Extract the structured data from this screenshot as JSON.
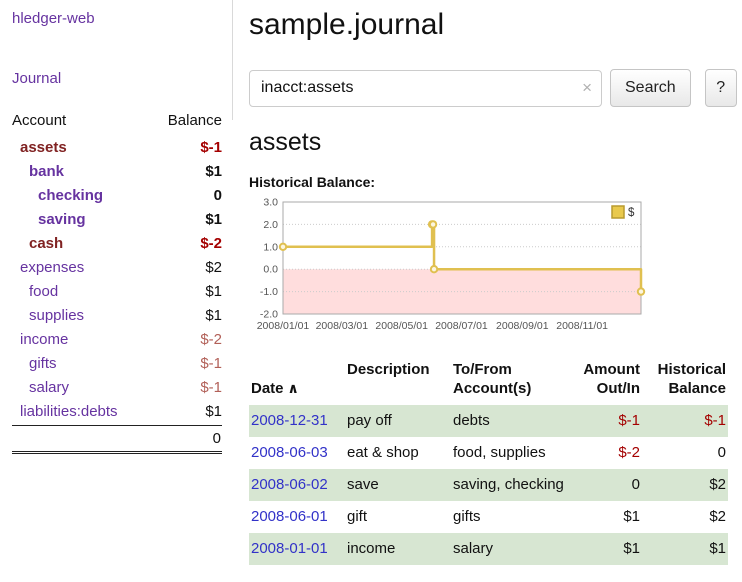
{
  "colors": {
    "link_purple": "#6633a0",
    "date_blue": "#3232c8",
    "negative_strong": "#a40000",
    "negative_soft": "#b26058",
    "account_maroon": "#802222",
    "text_black": "#111111",
    "row_green": "#d7e6d2",
    "chart_line_gold": "#e0c050",
    "chart_negative_fill": "#ffdddd",
    "legend_square_fill": "#e9c94c",
    "legend_square_border": "#b89a2e"
  },
  "window": {
    "app_title": "hledger-web",
    "nav": {
      "journal_label": "Journal"
    }
  },
  "sidebar": {
    "table_headers": {
      "account": "Account",
      "balance": "Balance"
    },
    "rows": [
      {
        "account": "assets",
        "balance": "$-1",
        "indent": 0,
        "bold": true,
        "account_color": "maroon",
        "balance_color": "negative_strong"
      },
      {
        "account": "bank",
        "balance": "$1",
        "indent": 1,
        "bold": true,
        "account_color": "purple",
        "balance_color": "black"
      },
      {
        "account": "checking",
        "balance": "0",
        "indent": 2,
        "bold": true,
        "account_color": "purple",
        "balance_color": "black"
      },
      {
        "account": "saving",
        "balance": "$1",
        "indent": 2,
        "bold": true,
        "account_color": "purple",
        "balance_color": "black"
      },
      {
        "account": "cash",
        "balance": "$-2",
        "indent": 1,
        "bold": true,
        "account_color": "maroon",
        "balance_color": "negative_strong"
      },
      {
        "account": "expenses",
        "balance": "$2",
        "indent": 0,
        "bold": false,
        "account_color": "purple",
        "balance_color": "black"
      },
      {
        "account": "food",
        "balance": "$1",
        "indent": 1,
        "bold": false,
        "account_color": "purple",
        "balance_color": "black"
      },
      {
        "account": "supplies",
        "balance": "$1",
        "indent": 1,
        "bold": false,
        "account_color": "purple",
        "balance_color": "black"
      },
      {
        "account": "income",
        "balance": "$-2",
        "indent": 0,
        "bold": false,
        "account_color": "purple",
        "balance_color": "negative_soft"
      },
      {
        "account": "gifts",
        "balance": "$-1",
        "indent": 1,
        "bold": false,
        "account_color": "purple",
        "balance_color": "negative_soft"
      },
      {
        "account": "salary",
        "balance": "$-1",
        "indent": 1,
        "bold": false,
        "account_color": "purple",
        "balance_color": "negative_soft"
      },
      {
        "account": "liabilities:debts",
        "balance": "$1",
        "indent": 0,
        "bold": false,
        "account_color": "purple",
        "balance_color": "black"
      }
    ],
    "total": "0"
  },
  "main": {
    "title": "sample.journal",
    "search": {
      "value": "inacct:assets",
      "clear_icon": "×",
      "button_label": "Search",
      "help_label": "?"
    },
    "account_heading": "assets",
    "chart_title": "Historical Balance:"
  },
  "chart_data": {
    "type": "line",
    "step": true,
    "title": "Historical Balance",
    "ylim": [
      -2,
      3
    ],
    "yticks": [
      3.0,
      2.0,
      1.0,
      0.0,
      -1.0,
      -2.0
    ],
    "xrange_days": [
      0,
      365
    ],
    "xticks": [
      {
        "label": "2008/01/01",
        "day": 0
      },
      {
        "label": "2008/03/01",
        "day": 60
      },
      {
        "label": "2008/05/01",
        "day": 121
      },
      {
        "label": "2008/07/01",
        "day": 182
      },
      {
        "label": "2008/09/01",
        "day": 244
      },
      {
        "label": "2008/11/01",
        "day": 305
      }
    ],
    "series": [
      {
        "name": "$",
        "points": [
          {
            "date": "2008-01-01",
            "day": 0,
            "value": 1
          },
          {
            "date": "2008-06-01",
            "day": 152,
            "value": 2
          },
          {
            "date": "2008-06-02",
            "day": 153,
            "value": 2
          },
          {
            "date": "2008-06-03",
            "day": 154,
            "value": 0
          },
          {
            "date": "2008-12-31",
            "day": 365,
            "value": -1
          }
        ]
      }
    ],
    "legend": {
      "entries": [
        "$"
      ],
      "position": "top-right"
    },
    "grid": true,
    "negative_region": true
  },
  "register": {
    "headers": {
      "date": "Date",
      "sort_icon": "∧",
      "description": "Description",
      "tofrom": "To/From\nAccount(s)",
      "amount": "Amount\nOut/In",
      "balance": "Historical\nBalance"
    },
    "rows": [
      {
        "date": "2008-12-31",
        "description": "pay off",
        "accounts": "debts",
        "amount": "$-1",
        "amount_negative": true,
        "balance": "$-1",
        "balance_negative": true,
        "shaded": true
      },
      {
        "date": "2008-06-03",
        "description": "eat & shop",
        "accounts": "food, supplies",
        "amount": "$-2",
        "amount_negative": true,
        "balance": "0",
        "balance_negative": false,
        "shaded": false
      },
      {
        "date": "2008-06-02",
        "description": "save",
        "accounts": "saving, checking",
        "amount": "0",
        "amount_negative": false,
        "balance": "$2",
        "balance_negative": false,
        "shaded": true
      },
      {
        "date": "2008-06-01",
        "description": "gift",
        "accounts": "gifts",
        "amount": "$1",
        "amount_negative": false,
        "balance": "$2",
        "balance_negative": false,
        "shaded": false
      },
      {
        "date": "2008-01-01",
        "description": "income",
        "accounts": "salary",
        "amount": "$1",
        "amount_negative": false,
        "balance": "$1",
        "balance_negative": false,
        "shaded": true
      }
    ]
  }
}
